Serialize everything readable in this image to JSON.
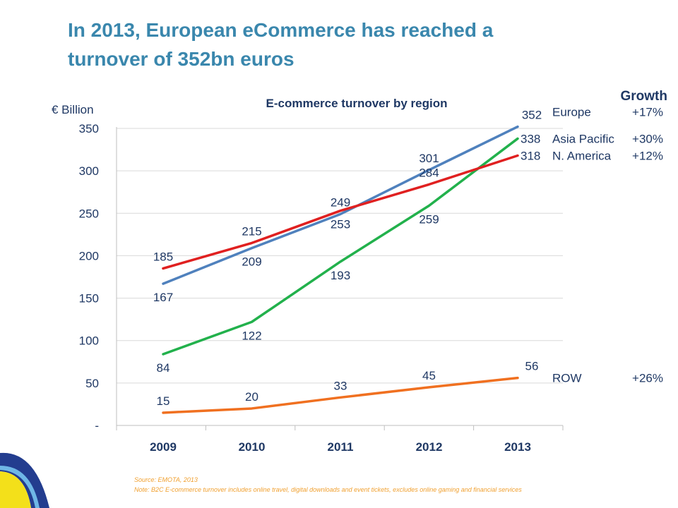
{
  "slide": {
    "title_line1": "In 2013, European eCommerce has reached a",
    "title_line2": "turnover of 352bn euros"
  },
  "colors": {
    "title": "#3a87ad",
    "text": "#1f3864",
    "grid": "#d9d9d9",
    "footnote": "#f0a030"
  },
  "chart_data": {
    "type": "line",
    "title": "E-commerce turnover by region",
    "ylabel": "€ Billion",
    "xlabel": "",
    "categories": [
      "2009",
      "2010",
      "2011",
      "2012",
      "2013"
    ],
    "ylim": [
      0,
      350
    ],
    "yticks": [
      0,
      50,
      100,
      150,
      200,
      250,
      300,
      350
    ],
    "ytick_labels": [
      "-",
      "50",
      "100",
      "150",
      "200",
      "250",
      "300",
      "350"
    ],
    "grid": true,
    "legend_header": "Growth",
    "legend_placement": "right",
    "series": [
      {
        "name": "Europe",
        "growth": "+17%",
        "color": "#4f81bd",
        "values": [
          167,
          209,
          249,
          301,
          352
        ],
        "label_pos": [
          "below",
          "below",
          "above",
          "above",
          "above"
        ]
      },
      {
        "name": "Asia Pacific",
        "growth": "+30%",
        "color": "#22b14c",
        "values": [
          84,
          122,
          193,
          259,
          338
        ],
        "label_pos": [
          "below",
          "below",
          "below",
          "below",
          "right"
        ]
      },
      {
        "name": "N. America",
        "growth": "+12%",
        "color": "#e02020",
        "values": [
          185,
          215,
          253,
          284,
          318
        ],
        "label_pos": [
          "above",
          "above",
          "below",
          "above",
          "right"
        ]
      },
      {
        "name": "ROW",
        "growth": "+26%",
        "color": "#f07020",
        "values": [
          15,
          20,
          33,
          45,
          56
        ],
        "label_pos": [
          "above",
          "above",
          "above",
          "above",
          "above"
        ]
      }
    ]
  },
  "footnotes": {
    "source": "Source: EMOTA, 2013",
    "note": "Note: B2C E-commerce turnover includes online travel, digital downloads and event tickets, excludes online gaming and financial services"
  }
}
